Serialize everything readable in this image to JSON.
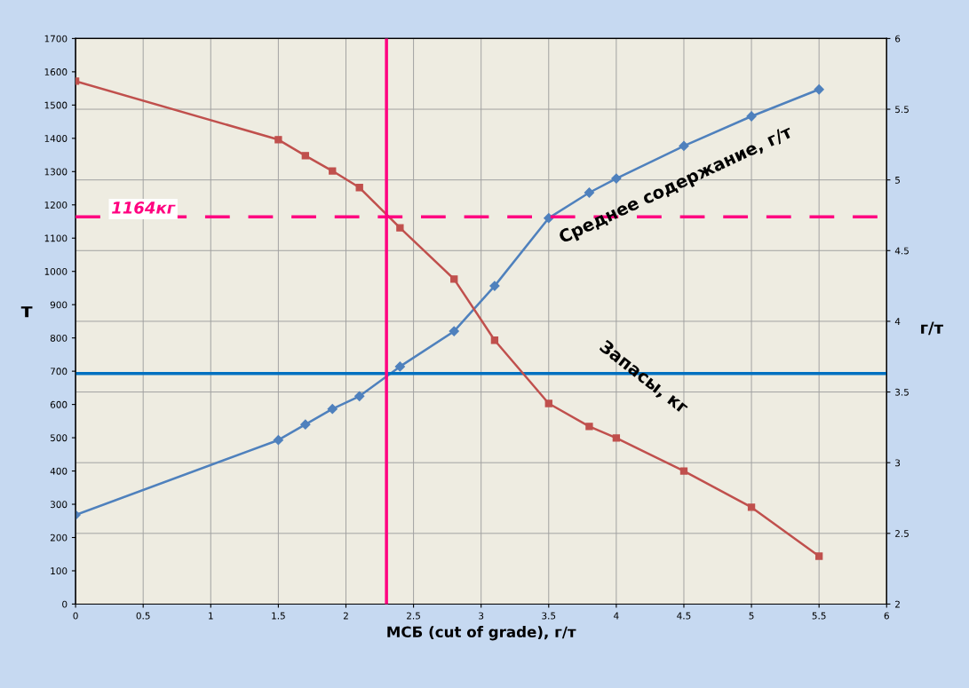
{
  "chart_data": {
    "type": "line",
    "xlabel": "МСБ (cut of grade), г/т",
    "ylabel": "т",
    "y2label": "г/т",
    "x": [
      0,
      1.5,
      1.7,
      1.9,
      2.1,
      2.4,
      2.8,
      3.1,
      3.5,
      3.8,
      4,
      4.5,
      5,
      5.5
    ],
    "series": [
      {
        "name": "Запасы, кг",
        "color": "#c0504d",
        "marker": "square",
        "values": [
          1572,
          1396,
          1348,
          1302,
          1252,
          1131,
          977,
          793,
          603,
          534,
          499,
          400,
          291,
          144
        ]
      },
      {
        "name": "Среднее содержание, г/т",
        "color": "#4f81bd",
        "marker": "diamond",
        "axis": "y2",
        "values": [
          2.63,
          3.16,
          3.27,
          3.38,
          3.47,
          3.68,
          3.93,
          4.25,
          4.73,
          4.91,
          5.01,
          5.24,
          5.45,
          5.64
        ]
      }
    ],
    "xlim": [
      0,
      6
    ],
    "xticks": [
      0,
      0.5,
      1,
      1.5,
      2,
      2.5,
      3,
      3.5,
      4,
      4.5,
      5,
      5.5,
      6
    ],
    "ylim": [
      0,
      1700
    ],
    "yticks": [
      0,
      100,
      200,
      300,
      400,
      500,
      600,
      700,
      800,
      900,
      1000,
      1100,
      1200,
      1300,
      1400,
      1500,
      1600,
      1700
    ],
    "y2lim": [
      2,
      6
    ],
    "y2ticks": [
      2,
      2.5,
      3,
      3.5,
      4,
      4.5,
      5,
      5.5,
      6
    ],
    "ref_lines": [
      {
        "axis": "y",
        "value": 1164,
        "label": "1164кг",
        "color": "#ff0080",
        "line_style": "dashed"
      },
      {
        "axis": "x",
        "value": 2.3,
        "color": "#ff0080",
        "line_style": "solid"
      },
      {
        "axis": "y2",
        "value": 3.63,
        "color": "#0070c0",
        "line_style": "solid"
      }
    ],
    "grid": true,
    "legend": false
  }
}
